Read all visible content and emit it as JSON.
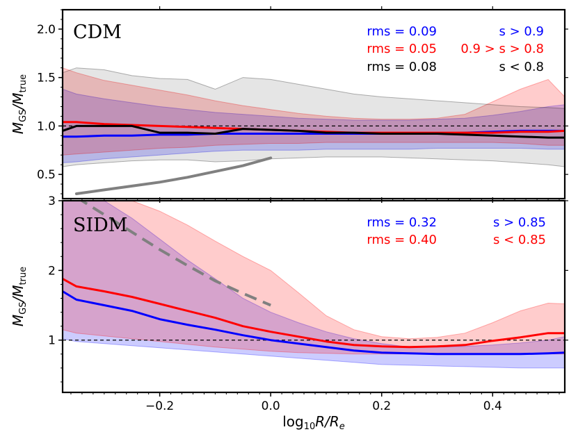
{
  "chart_data": [
    {
      "type": "line",
      "title": "CDM",
      "xlabel": "log10 R/Re",
      "ylabel": "MGS/Mtrue",
      "xlim": [
        -0.375,
        0.53
      ],
      "ylim": [
        0.25,
        2.2
      ],
      "yticks": [
        "0.5",
        "1.0",
        "1.5",
        "2.0"
      ],
      "reference_line": 1.0,
      "x": [
        -0.375,
        -0.35,
        -0.3,
        -0.25,
        -0.2,
        -0.15,
        -0.1,
        -0.05,
        0.0,
        0.05,
        0.1,
        0.15,
        0.2,
        0.25,
        0.3,
        0.35,
        0.4,
        0.45,
        0.5,
        0.53
      ],
      "series": [
        {
          "name": "s > 0.9",
          "color": "#0000ff",
          "rms_label": "rms = 0.09",
          "s_label": "s > 0.9",
          "values": [
            0.89,
            0.89,
            0.9,
            0.9,
            0.91,
            0.91,
            0.92,
            0.92,
            0.92,
            0.92,
            0.92,
            0.92,
            0.92,
            0.92,
            0.92,
            0.93,
            0.94,
            0.95,
            0.95,
            0.95
          ],
          "lower": [
            0.62,
            0.63,
            0.66,
            0.68,
            0.7,
            0.72,
            0.74,
            0.75,
            0.75,
            0.75,
            0.76,
            0.76,
            0.76,
            0.76,
            0.77,
            0.77,
            0.77,
            0.77,
            0.76,
            0.76
          ],
          "upper": [
            1.38,
            1.33,
            1.28,
            1.24,
            1.2,
            1.17,
            1.14,
            1.12,
            1.1,
            1.08,
            1.07,
            1.06,
            1.06,
            1.06,
            1.07,
            1.08,
            1.11,
            1.15,
            1.2,
            1.22
          ]
        },
        {
          "name": "0.9 > s > 0.8",
          "color": "#ff0000",
          "rms_label": "rms = 0.05",
          "s_label": "0.9 > s > 0.8",
          "values": [
            1.04,
            1.04,
            1.02,
            1.01,
            1.0,
            0.99,
            0.98,
            0.97,
            0.96,
            0.95,
            0.94,
            0.93,
            0.93,
            0.93,
            0.93,
            0.93,
            0.93,
            0.94,
            0.94,
            0.95
          ],
          "lower": [
            0.7,
            0.71,
            0.73,
            0.75,
            0.77,
            0.78,
            0.8,
            0.81,
            0.82,
            0.82,
            0.83,
            0.83,
            0.83,
            0.83,
            0.83,
            0.83,
            0.83,
            0.82,
            0.8,
            0.8
          ],
          "upper": [
            1.6,
            1.55,
            1.47,
            1.42,
            1.37,
            1.32,
            1.26,
            1.21,
            1.17,
            1.13,
            1.1,
            1.08,
            1.07,
            1.07,
            1.08,
            1.12,
            1.25,
            1.38,
            1.48,
            1.3
          ]
        },
        {
          "name": "s < 0.8",
          "color": "#000000",
          "rms_label": "rms = 0.08",
          "s_label": "s < 0.8",
          "values": [
            0.95,
            1.0,
            1.0,
            1.0,
            0.93,
            0.93,
            0.92,
            0.97,
            0.96,
            0.95,
            0.93,
            0.93,
            0.92,
            0.92,
            0.92,
            0.91,
            0.9,
            0.89,
            0.88,
            0.88
          ],
          "lower": [
            0.58,
            0.6,
            0.62,
            0.64,
            0.65,
            0.65,
            0.63,
            0.64,
            0.66,
            0.67,
            0.68,
            0.68,
            0.68,
            0.67,
            0.66,
            0.65,
            0.64,
            0.62,
            0.6,
            0.58
          ],
          "upper": [
            1.55,
            1.6,
            1.58,
            1.52,
            1.49,
            1.48,
            1.38,
            1.5,
            1.48,
            1.43,
            1.38,
            1.33,
            1.3,
            1.28,
            1.26,
            1.24,
            1.22,
            1.2,
            1.19,
            1.18
          ]
        }
      ],
      "guide": {
        "style": "solid",
        "color": "#808080",
        "x": [
          -0.35,
          -0.3,
          -0.25,
          -0.2,
          -0.15,
          -0.1,
          -0.05,
          0.0
        ],
        "values": [
          0.3,
          0.34,
          0.38,
          0.42,
          0.47,
          0.53,
          0.59,
          0.67
        ]
      }
    },
    {
      "type": "line",
      "title": "SIDM",
      "xlabel": "log10 R/Re",
      "ylabel": "MGS/Mtrue",
      "xlim": [
        -0.375,
        0.53
      ],
      "ylim": [
        0.25,
        3.0
      ],
      "yticks": [
        "1",
        "2",
        "3"
      ],
      "xticks": [
        "−0.2",
        "0.0",
        "0.2",
        "0.4"
      ],
      "reference_line": 1.0,
      "x": [
        -0.375,
        -0.35,
        -0.3,
        -0.25,
        -0.2,
        -0.15,
        -0.1,
        -0.05,
        0.0,
        0.05,
        0.1,
        0.15,
        0.2,
        0.25,
        0.3,
        0.35,
        0.4,
        0.45,
        0.5,
        0.53
      ],
      "series": [
        {
          "name": "s > 0.85",
          "color": "#0000ff",
          "rms_label": "rms = 0.32",
          "s_label": "s > 0.85",
          "values": [
            1.7,
            1.58,
            1.5,
            1.42,
            1.3,
            1.22,
            1.15,
            1.07,
            1.0,
            0.95,
            0.9,
            0.85,
            0.82,
            0.81,
            0.8,
            0.8,
            0.8,
            0.8,
            0.81,
            0.82
          ],
          "lower": [
            1.02,
            0.98,
            0.95,
            0.92,
            0.89,
            0.86,
            0.83,
            0.8,
            0.77,
            0.74,
            0.71,
            0.68,
            0.65,
            0.64,
            0.63,
            0.62,
            0.61,
            0.6,
            0.6,
            0.6
          ],
          "upper": [
            3.0,
            3.0,
            3.0,
            2.75,
            2.45,
            2.15,
            1.88,
            1.6,
            1.4,
            1.25,
            1.12,
            1.02,
            0.95,
            0.9,
            0.9,
            0.91,
            0.93,
            0.96,
            1.0,
            1.05
          ]
        },
        {
          "name": "s < 0.85",
          "color": "#ff0000",
          "rms_label": "rms = 0.40",
          "s_label": "s < 0.85",
          "values": [
            1.88,
            1.77,
            1.7,
            1.62,
            1.52,
            1.42,
            1.32,
            1.2,
            1.12,
            1.05,
            0.98,
            0.93,
            0.91,
            0.9,
            0.91,
            0.93,
            0.99,
            1.04,
            1.1,
            1.1
          ],
          "lower": [
            1.15,
            1.1,
            1.06,
            1.02,
            0.98,
            0.94,
            0.9,
            0.87,
            0.84,
            0.82,
            0.81,
            0.8,
            0.8,
            0.8,
            0.8,
            0.8,
            0.8,
            0.8,
            0.8,
            0.8
          ],
          "upper": [
            3.0,
            3.0,
            3.0,
            3.0,
            2.85,
            2.65,
            2.42,
            2.2,
            2.0,
            1.68,
            1.35,
            1.15,
            1.05,
            1.02,
            1.04,
            1.1,
            1.25,
            1.42,
            1.53,
            1.52
          ]
        }
      ],
      "guide": {
        "style": "dashed",
        "color": "#808080",
        "x": [
          -0.35,
          -0.3,
          -0.25,
          -0.2,
          -0.15,
          -0.1,
          -0.05,
          0.0
        ],
        "values": [
          3.05,
          2.8,
          2.55,
          2.3,
          2.07,
          1.85,
          1.67,
          1.5
        ]
      }
    }
  ],
  "ylabels": {
    "main": "M",
    "sub": "GS",
    "sep": "/M",
    "sub2": "true"
  },
  "xlabel": {
    "pre": "log",
    "sub": "10",
    "mid": "R/R",
    "sub2": "e"
  }
}
